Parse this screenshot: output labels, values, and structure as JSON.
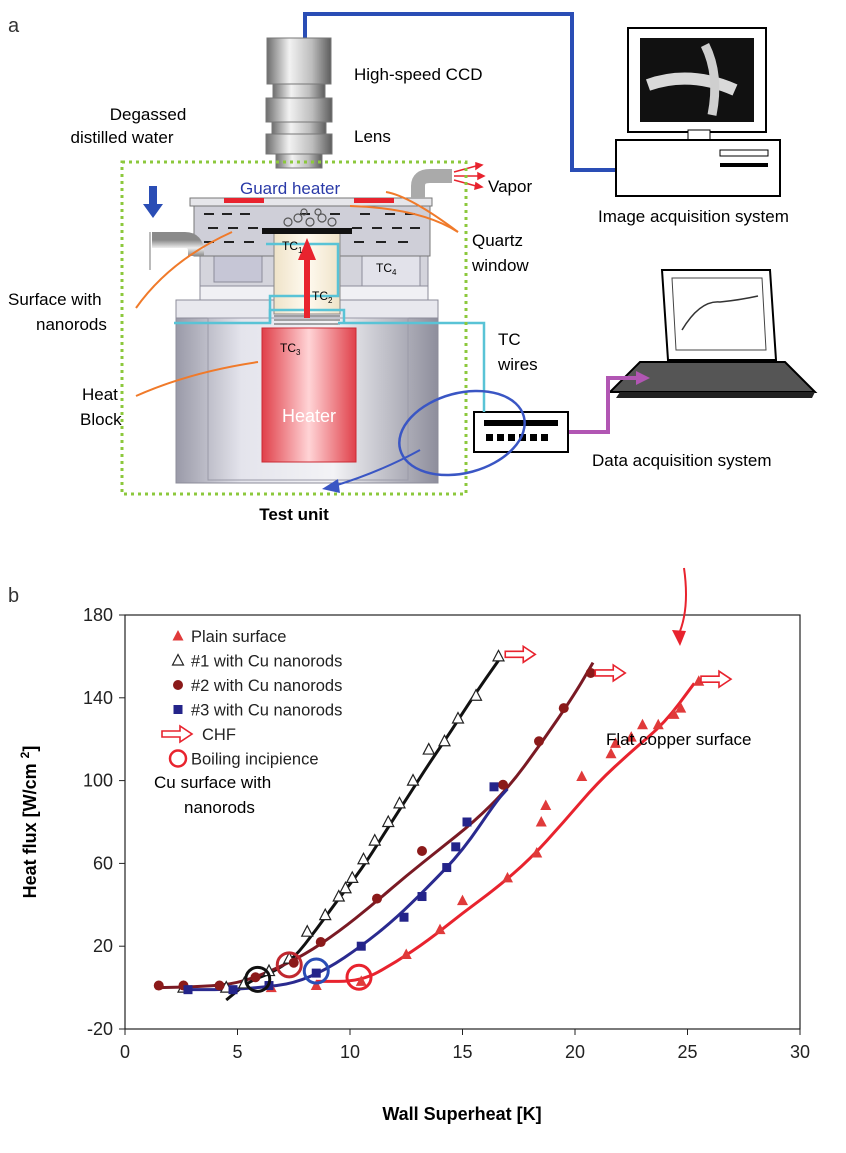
{
  "panel_a": {
    "letter": "a",
    "labels": {
      "ccd": "High-speed CCD",
      "lens": "Lens",
      "degassed_line1": "Degassed",
      "degassed_line2": "distilled water",
      "guard_heater": "Guard heater",
      "vapor": "Vapor",
      "quartz_line1": "Quartz",
      "quartz_line2": "window",
      "surface_line1": "Surface with",
      "surface_line2": "nanorods",
      "heat_block_line1": "Heat",
      "heat_block_line2": "Block",
      "heater": "Heater",
      "test_unit": "Test unit",
      "tc_wires_line1": "TC",
      "tc_wires_line2": "wires",
      "image_acq": "Image acquisition system",
      "data_acq": "Data acquisition system",
      "tc_main": "TC",
      "tc1_sub": "1",
      "tc2_sub": "2",
      "tc3_sub": "3",
      "tc4_sub": "4"
    },
    "colors": {
      "blue_cable": "#2a4db5",
      "teal_wire": "#59c3d6",
      "purple_cable": "#b156b3",
      "orange_pointer": "#f07a2a",
      "red_arrow": "#e8232e",
      "green_border": "#8cc83c"
    }
  },
  "chart_data": {
    "type": "scatter",
    "letter": "b",
    "xlabel": "Wall Superheat [K]",
    "ylabel_main": "Heat flux [W/cm ",
    "ylabel_sup": "2",
    "ylabel_end": "]",
    "xlim": [
      0,
      30
    ],
    "ylim": [
      -20,
      180
    ],
    "xticks": [
      0,
      5,
      10,
      15,
      20,
      25,
      30
    ],
    "yticks": [
      -20,
      20,
      60,
      100,
      140,
      180
    ],
    "grid": false,
    "legend_position": "top-left",
    "series": [
      {
        "name": "Plain surface",
        "marker": "filled-triangle",
        "color": "#e03a3a",
        "points": [
          [
            2.6,
            0
          ],
          [
            4.5,
            0
          ],
          [
            6.5,
            0
          ],
          [
            8.5,
            1
          ],
          [
            10.5,
            3
          ],
          [
            12.5,
            16
          ],
          [
            14,
            28
          ],
          [
            15,
            42
          ],
          [
            17,
            53
          ],
          [
            18.3,
            65
          ],
          [
            18.5,
            80
          ],
          [
            18.7,
            88
          ],
          [
            20.3,
            102
          ],
          [
            21.6,
            113
          ],
          [
            21.8,
            118
          ],
          [
            22.5,
            121
          ],
          [
            23,
            127
          ],
          [
            23.7,
            127
          ],
          [
            24.4,
            132
          ],
          [
            24.7,
            135
          ],
          [
            25.5,
            148
          ]
        ]
      },
      {
        "name": "#1 with Cu nanorods",
        "marker": "open-triangle",
        "color": "#222222",
        "points": [
          [
            2.6,
            0
          ],
          [
            4.5,
            0
          ],
          [
            5.3,
            2
          ],
          [
            6.4,
            8
          ],
          [
            7.3,
            14
          ],
          [
            8.1,
            27
          ],
          [
            8.9,
            35
          ],
          [
            9.5,
            44
          ],
          [
            9.8,
            48
          ],
          [
            10.1,
            53
          ],
          [
            10.6,
            62
          ],
          [
            11.1,
            71
          ],
          [
            11.7,
            80
          ],
          [
            12.2,
            89
          ],
          [
            12.8,
            100
          ],
          [
            13.5,
            115
          ],
          [
            14.2,
            119
          ],
          [
            14.8,
            130
          ],
          [
            15.6,
            141
          ],
          [
            16.6,
            160
          ]
        ]
      },
      {
        "name": "#2 with Cu nanorods",
        "marker": "filled-circle",
        "color": "#8b1a1a",
        "points": [
          [
            1.5,
            1
          ],
          [
            2.6,
            1
          ],
          [
            4.2,
            1
          ],
          [
            5.8,
            5
          ],
          [
            7.5,
            12
          ],
          [
            8.7,
            22
          ],
          [
            11.2,
            43
          ],
          [
            13.2,
            66
          ],
          [
            16.8,
            98
          ],
          [
            18.4,
            119
          ],
          [
            19.5,
            135
          ],
          [
            20.7,
            152
          ]
        ]
      },
      {
        "name": "#3 with Cu nanorods",
        "marker": "filled-square",
        "color": "#24248a",
        "points": [
          [
            2.8,
            -1
          ],
          [
            4.8,
            -1
          ],
          [
            6.4,
            1
          ],
          [
            8.5,
            7
          ],
          [
            10.5,
            20
          ],
          [
            12.4,
            34
          ],
          [
            13.2,
            44
          ],
          [
            14.3,
            58
          ],
          [
            14.7,
            68
          ],
          [
            15.2,
            80
          ],
          [
            16.4,
            97
          ]
        ]
      }
    ],
    "fit_curves": [
      {
        "color": "#e8232e",
        "points": [
          [
            8.5,
            3
          ],
          [
            10.5,
            3
          ],
          [
            12,
            12
          ],
          [
            13.5,
            23
          ],
          [
            15,
            36
          ],
          [
            16.5,
            48
          ],
          [
            18,
            62
          ],
          [
            19.5,
            80
          ],
          [
            21,
            99
          ],
          [
            22.5,
            114
          ],
          [
            24,
            128
          ],
          [
            25.3,
            147
          ]
        ]
      },
      {
        "color": "#111111",
        "points": [
          [
            4.5,
            -6
          ],
          [
            5.5,
            3
          ],
          [
            6.5,
            7
          ],
          [
            7.5,
            14
          ],
          [
            8.5,
            28
          ],
          [
            9.5,
            43
          ],
          [
            10.5,
            57
          ],
          [
            11.5,
            74
          ],
          [
            12.5,
            91
          ],
          [
            13.5,
            108
          ],
          [
            14.5,
            124
          ],
          [
            15.5,
            141
          ],
          [
            16.6,
            158
          ]
        ]
      },
      {
        "color": "#7a1a24",
        "points": [
          [
            1.5,
            0
          ],
          [
            3.5,
            0.5
          ],
          [
            5,
            2
          ],
          [
            6.5,
            8
          ],
          [
            8,
            16
          ],
          [
            9.5,
            27
          ],
          [
            11,
            40
          ],
          [
            12.5,
            54
          ],
          [
            14,
            67
          ],
          [
            15.5,
            80
          ],
          [
            17,
            96
          ],
          [
            18.5,
            118
          ],
          [
            20,
            142
          ],
          [
            20.8,
            157
          ]
        ]
      },
      {
        "color": "#2a2a8f",
        "points": [
          [
            2.5,
            -1
          ],
          [
            4.5,
            -1
          ],
          [
            6,
            0
          ],
          [
            7.5,
            2
          ],
          [
            9,
            9
          ],
          [
            10.5,
            20
          ],
          [
            12,
            33
          ],
          [
            13.5,
            49
          ],
          [
            15,
            66
          ],
          [
            16.5,
            90
          ],
          [
            17,
            96
          ]
        ]
      }
    ],
    "incipience_circles": [
      {
        "x": 5.9,
        "y": 4,
        "color": "#111111"
      },
      {
        "x": 7.3,
        "y": 11,
        "color": "#c0282f"
      },
      {
        "x": 8.5,
        "y": 8,
        "color": "#2a4db5"
      },
      {
        "x": 10.4,
        "y": 5,
        "color": "#e8232e"
      }
    ],
    "chf_arrows": [
      {
        "x": 16.9,
        "y": 161
      },
      {
        "x": 20.9,
        "y": 152
      },
      {
        "x": 25.6,
        "y": 149
      }
    ],
    "legend": [
      {
        "label": "Plain surface",
        "marker": "filled-triangle",
        "color": "#e03a3a"
      },
      {
        "label": "#1 with Cu nanorods",
        "marker": "open-triangle",
        "color": "#222222"
      },
      {
        "label": "#2 with Cu nanorods",
        "marker": "filled-circle",
        "color": "#8b1a1a"
      },
      {
        "label": "#3 with Cu nanorods",
        "marker": "filled-square",
        "color": "#24248a"
      },
      {
        "label": "CHF",
        "marker": "open-arrow",
        "color": "#e8232e"
      },
      {
        "label": "Boiling incipience",
        "marker": "open-circle",
        "color": "#e8232e"
      }
    ],
    "annotations": {
      "cu_surface_line1": "Cu surface with",
      "cu_surface_line2": "nanorods",
      "flat_copper": "Flat copper surface"
    }
  }
}
